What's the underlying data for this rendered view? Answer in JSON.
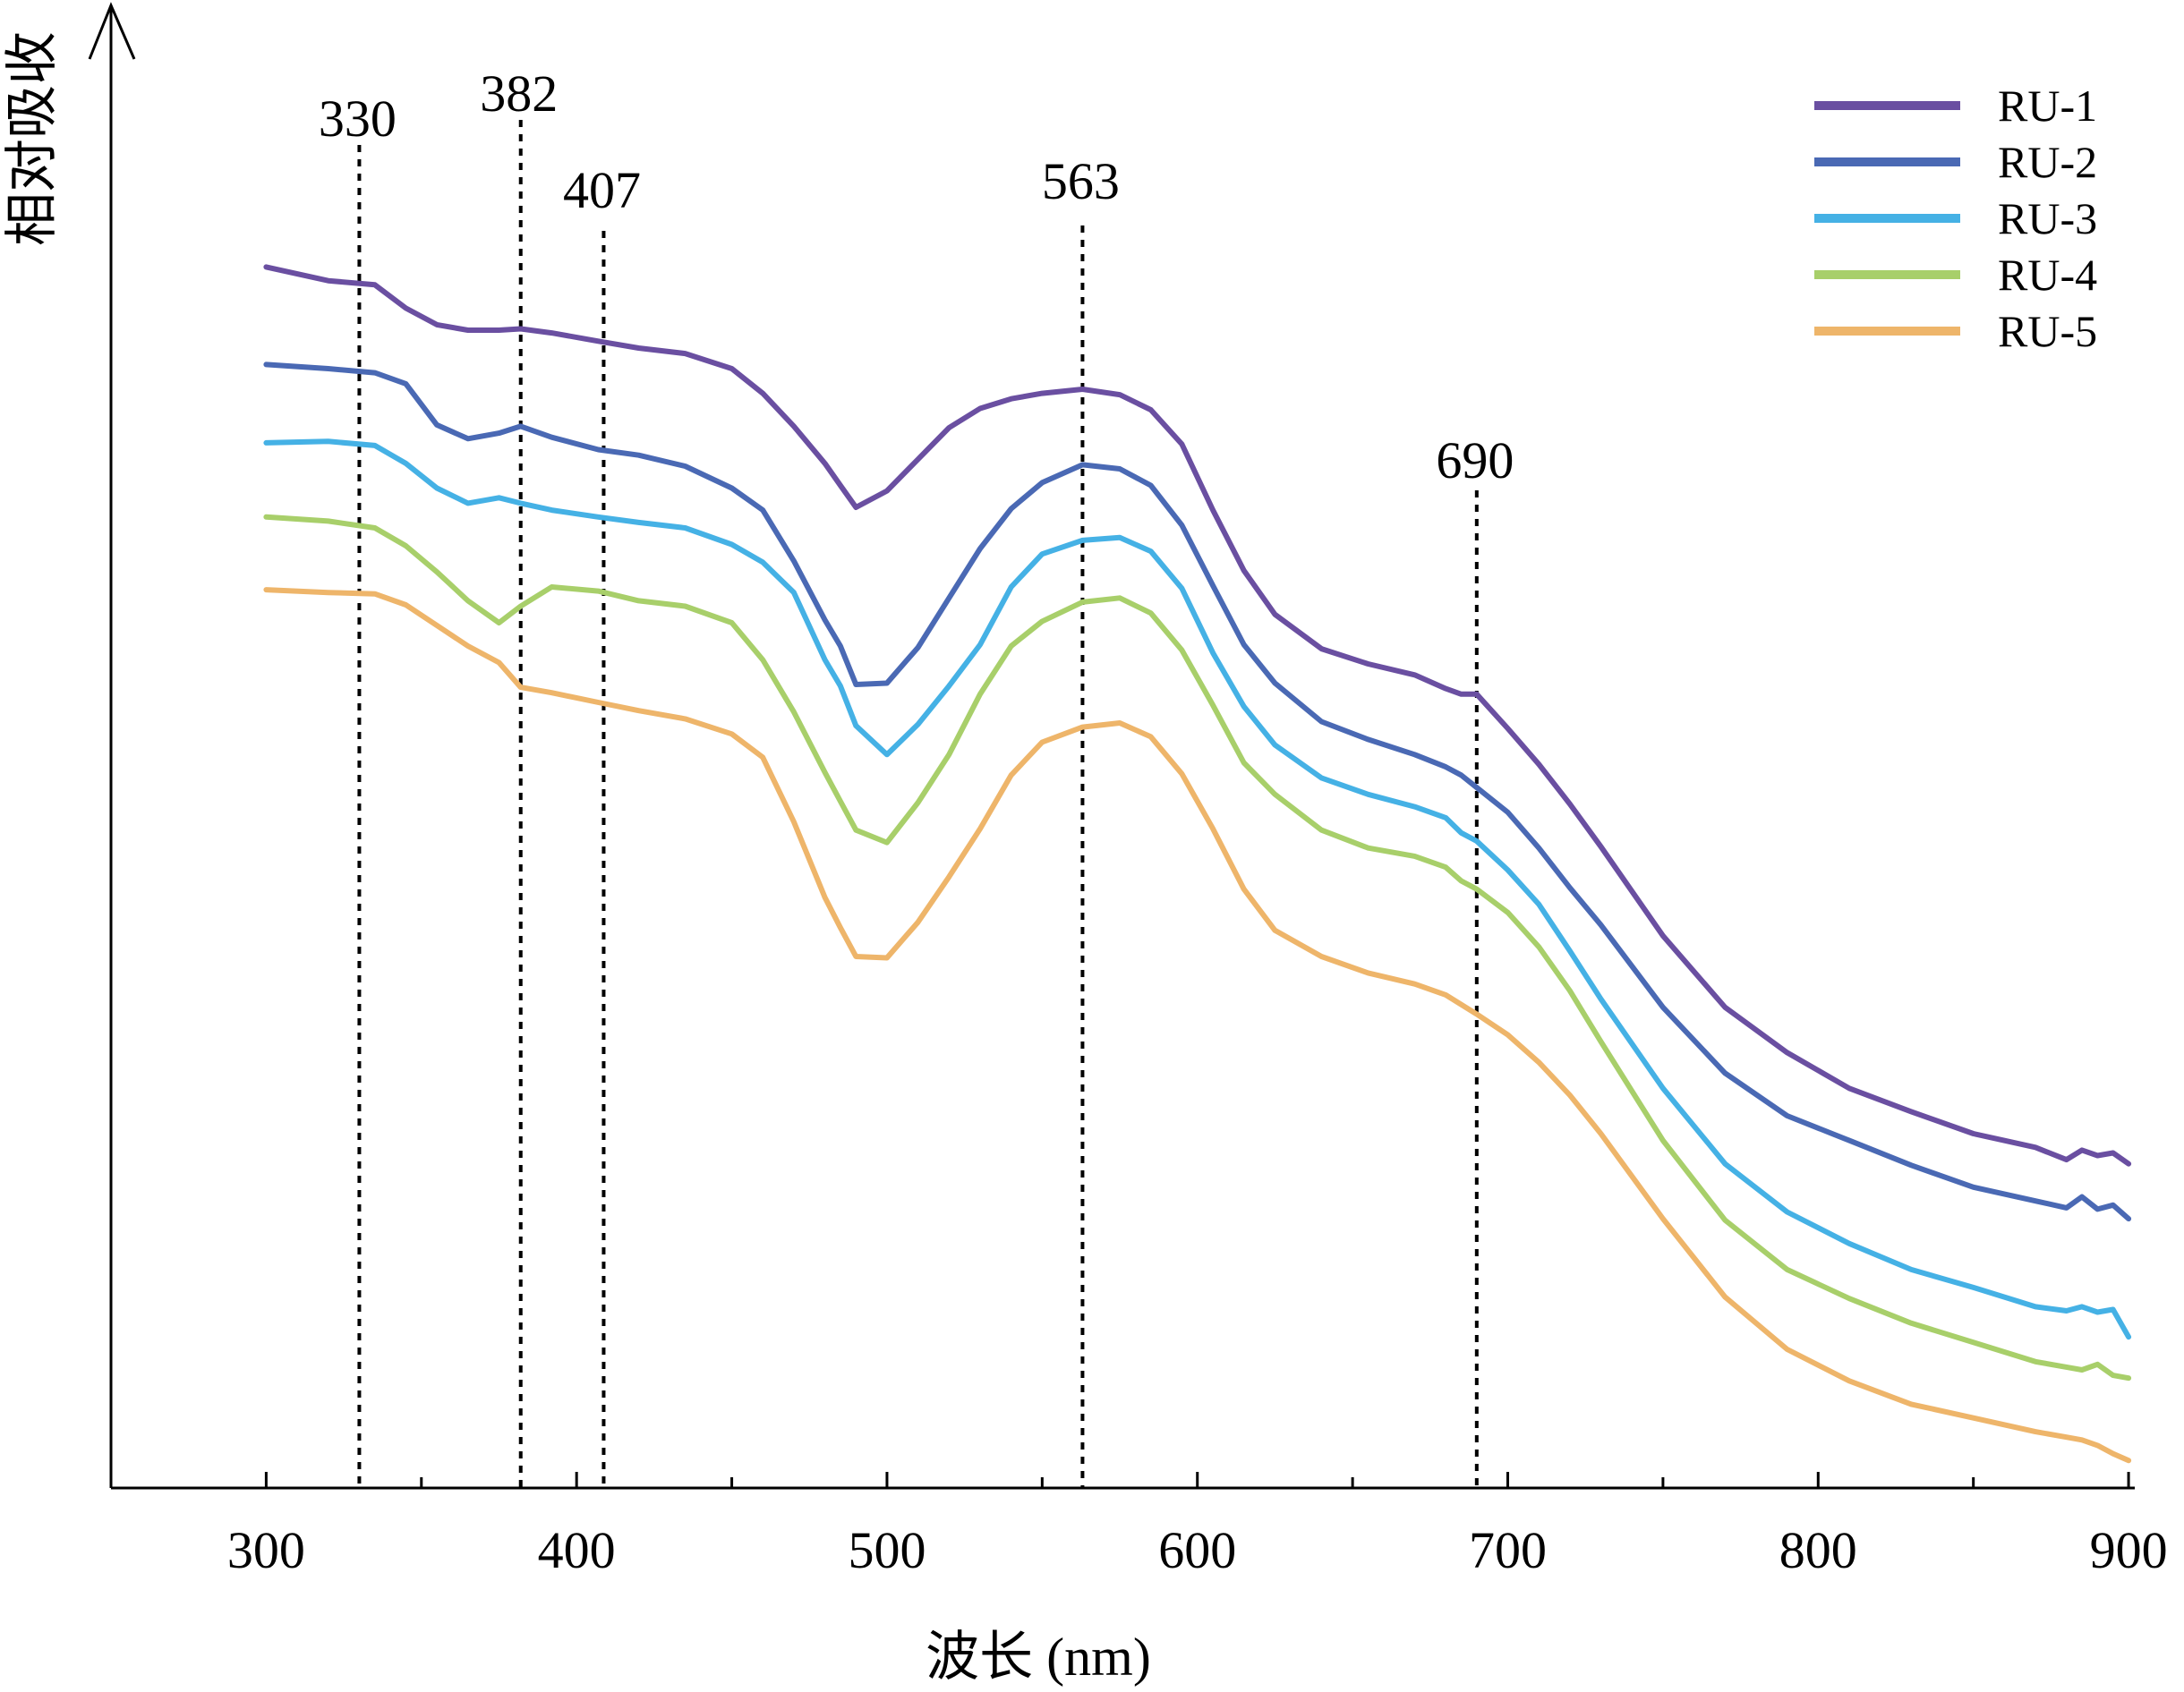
{
  "chart_data": {
    "type": "line",
    "xlabel": "波长 (nm)",
    "ylabel": "相对吸收",
    "xlim": [
      250,
      902
    ],
    "ylim": [
      0,
      1
    ],
    "x_ticks": [
      300,
      400,
      500,
      600,
      700,
      800,
      900
    ],
    "y_axis_arrow": true,
    "y_ticks_shown": false,
    "grid": false,
    "legend_position": "top-right",
    "peaks": [
      330,
      382,
      407,
      563,
      690
    ],
    "x": [
      300,
      320,
      335,
      345,
      355,
      365,
      375,
      382,
      392,
      407,
      420,
      435,
      450,
      460,
      470,
      480,
      485,
      490,
      500,
      510,
      520,
      530,
      540,
      550,
      563,
      575,
      585,
      595,
      605,
      615,
      625,
      640,
      655,
      670,
      680,
      685,
      690,
      700,
      710,
      720,
      730,
      750,
      770,
      790,
      810,
      830,
      850,
      870,
      880,
      885,
      890,
      895,
      900
    ],
    "series": [
      {
        "name": "RU-1",
        "color": "#6A4FA1",
        "values": [
          0.889,
          0.879,
          0.876,
          0.859,
          0.847,
          0.843,
          0.843,
          0.844,
          0.841,
          0.835,
          0.83,
          0.826,
          0.815,
          0.797,
          0.773,
          0.746,
          0.73,
          0.714,
          0.726,
          0.749,
          0.772,
          0.786,
          0.793,
          0.797,
          0.8,
          0.796,
          0.785,
          0.76,
          0.712,
          0.668,
          0.636,
          0.611,
          0.6,
          0.592,
          0.582,
          0.578,
          0.578,
          0.553,
          0.527,
          0.498,
          0.467,
          0.402,
          0.35,
          0.317,
          0.291,
          0.274,
          0.258,
          0.248,
          0.239,
          0.246,
          0.242,
          0.244,
          0.236
        ]
      },
      {
        "name": "RU-2",
        "color": "#4A69B4",
        "values": [
          0.818,
          0.815,
          0.812,
          0.804,
          0.774,
          0.764,
          0.768,
          0.773,
          0.765,
          0.756,
          0.752,
          0.744,
          0.728,
          0.712,
          0.675,
          0.632,
          0.613,
          0.585,
          0.586,
          0.612,
          0.648,
          0.684,
          0.713,
          0.732,
          0.745,
          0.742,
          0.73,
          0.701,
          0.657,
          0.614,
          0.586,
          0.558,
          0.545,
          0.534,
          0.525,
          0.519,
          0.51,
          0.492,
          0.466,
          0.437,
          0.41,
          0.35,
          0.302,
          0.271,
          0.253,
          0.235,
          0.219,
          0.209,
          0.204,
          0.212,
          0.203,
          0.206,
          0.196
        ]
      },
      {
        "name": "RU-3",
        "color": "#45B1E5",
        "values": [
          0.761,
          0.762,
          0.759,
          0.746,
          0.728,
          0.717,
          0.721,
          0.717,
          0.712,
          0.707,
          0.703,
          0.699,
          0.687,
          0.674,
          0.652,
          0.603,
          0.584,
          0.555,
          0.534,
          0.556,
          0.584,
          0.614,
          0.656,
          0.68,
          0.69,
          0.692,
          0.682,
          0.655,
          0.608,
          0.569,
          0.541,
          0.517,
          0.505,
          0.496,
          0.488,
          0.477,
          0.471,
          0.45,
          0.425,
          0.391,
          0.356,
          0.291,
          0.236,
          0.201,
          0.178,
          0.159,
          0.146,
          0.132,
          0.129,
          0.132,
          0.128,
          0.13,
          0.11
        ]
      },
      {
        "name": "RU-4",
        "color": "#A8CF6A",
        "values": [
          0.707,
          0.704,
          0.699,
          0.686,
          0.667,
          0.646,
          0.63,
          0.642,
          0.656,
          0.653,
          0.646,
          0.642,
          0.63,
          0.603,
          0.565,
          0.521,
          0.5,
          0.479,
          0.47,
          0.499,
          0.534,
          0.578,
          0.613,
          0.631,
          0.645,
          0.648,
          0.637,
          0.61,
          0.57,
          0.528,
          0.505,
          0.479,
          0.466,
          0.46,
          0.452,
          0.442,
          0.436,
          0.419,
          0.394,
          0.362,
          0.325,
          0.253,
          0.195,
          0.159,
          0.138,
          0.12,
          0.106,
          0.092,
          0.088,
          0.086,
          0.09,
          0.082,
          0.08
        ]
      },
      {
        "name": "RU-5",
        "color": "#EEB56A",
        "values": [
          0.654,
          0.652,
          0.651,
          0.643,
          0.628,
          0.613,
          0.601,
          0.583,
          0.579,
          0.572,
          0.566,
          0.56,
          0.549,
          0.532,
          0.485,
          0.43,
          0.408,
          0.387,
          0.386,
          0.412,
          0.445,
          0.48,
          0.519,
          0.543,
          0.554,
          0.557,
          0.547,
          0.52,
          0.48,
          0.436,
          0.406,
          0.387,
          0.375,
          0.367,
          0.359,
          0.352,
          0.345,
          0.33,
          0.31,
          0.286,
          0.258,
          0.196,
          0.139,
          0.101,
          0.078,
          0.061,
          0.051,
          0.041,
          0.037,
          0.035,
          0.031,
          0.025,
          0.02
        ]
      }
    ]
  }
}
